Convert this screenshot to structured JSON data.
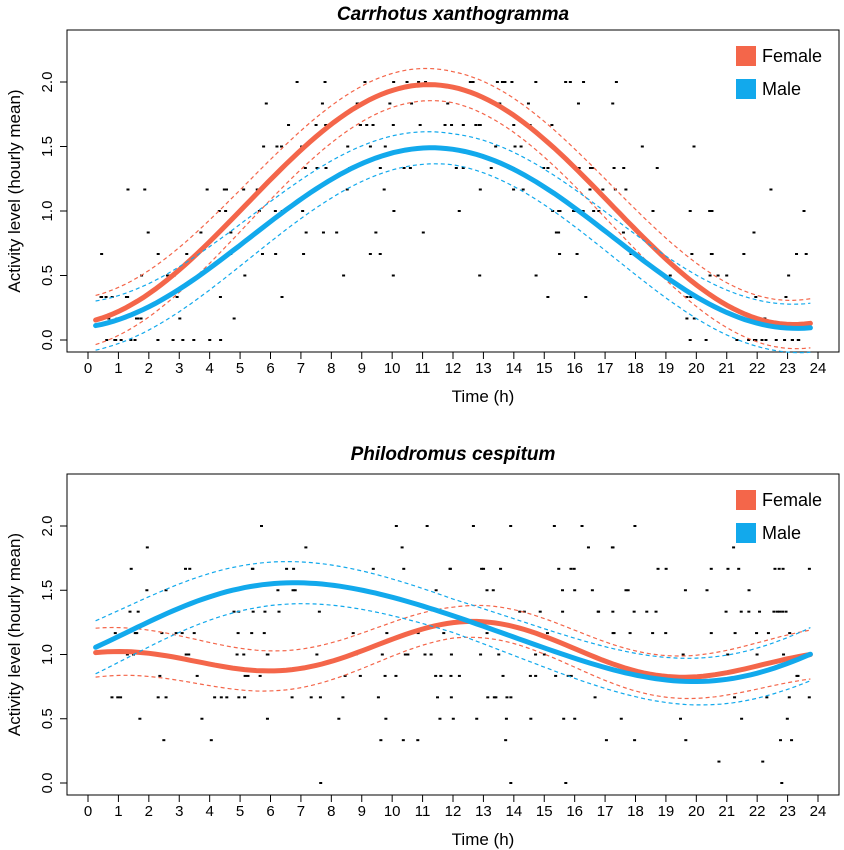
{
  "chart_data": [
    {
      "type": "line",
      "title": "Carrhotus xanthogramma",
      "xlabel": "Time (h)",
      "ylabel": "Activity level (hourly mean)",
      "xlim": [
        0,
        24
      ],
      "ylim": [
        0,
        2.0
      ],
      "xticks": [
        "0",
        "1",
        "2",
        "3",
        "4",
        "5",
        "6",
        "7",
        "8",
        "9",
        "10",
        "11",
        "12",
        "13",
        "14",
        "15",
        "16",
        "17",
        "18",
        "19",
        "20",
        "21",
        "22",
        "23",
        "24"
      ],
      "yticks": [
        "0.0",
        "0.5",
        "1.0",
        "1.5",
        "2.0"
      ],
      "legend_position": "top-right",
      "series": [
        {
          "name": "Female",
          "color": "#F4664A",
          "fit": {
            "mesor": 1.05,
            "amp1": 0.93,
            "peak1": 11.2,
            "amp2": 0.0,
            "peak2": 0
          },
          "ci_halfwidth": 0.12
        },
        {
          "name": "Male",
          "color": "#12A9EC",
          "fit": {
            "mesor": 0.79,
            "amp1": 0.7,
            "peak1": 11.3,
            "amp2": 0.0,
            "peak2": 0
          },
          "ci_halfwidth": 0.12
        }
      ],
      "points": {
        "color": "#000000",
        "day_mean": 1.7,
        "night_mean": 0.2,
        "seed": 7
      }
    },
    {
      "type": "line",
      "title": "Philodromus cespitum",
      "xlabel": "Time (h)",
      "ylabel": "Activity level (hourly mean)",
      "xlim": [
        0,
        24
      ],
      "ylim": [
        0,
        2.0
      ],
      "xticks": [
        "0",
        "1",
        "2",
        "3",
        "4",
        "5",
        "6",
        "7",
        "8",
        "9",
        "10",
        "11",
        "12",
        "13",
        "14",
        "15",
        "16",
        "17",
        "18",
        "19",
        "20",
        "21",
        "22",
        "23",
        "24"
      ],
      "yticks": [
        "0.0",
        "0.5",
        "1.0",
        "1.5",
        "2.0"
      ],
      "legend_position": "top-right",
      "series": [
        {
          "name": "Female",
          "color": "#F4664A",
          "fit": {
            "mesor": 1.0,
            "amp1": 0.12,
            "peak1": 12.0,
            "amp2": 0.14,
            "peak2": 0.8
          },
          "ci_halfwidth": 0.12
        },
        {
          "name": "Male",
          "color": "#12A9EC",
          "fit": {
            "mesor": 1.18,
            "amp1": 0.38,
            "peak1": 7.4,
            "amp2": 0.03,
            "peak2": 4
          },
          "ci_halfwidth": 0.13
        }
      ],
      "points": {
        "color": "#000000",
        "day_mean": 1.1,
        "night_mean": 1.1,
        "seed": 13
      }
    }
  ]
}
